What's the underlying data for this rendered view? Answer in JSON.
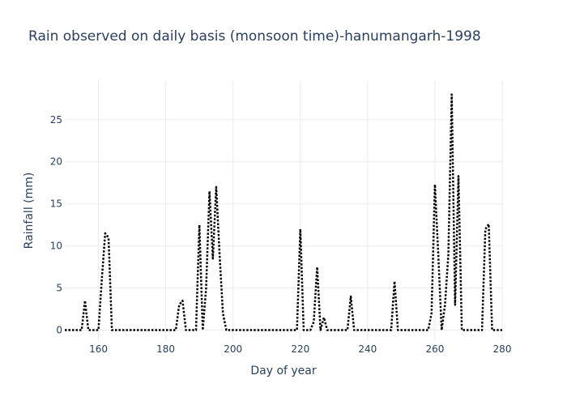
{
  "chart_data": {
    "type": "line",
    "title": "Rain observed on daily basis (monsoon time)-hanumangarh-1998",
    "xlabel": "Day of year",
    "ylabel": "Rainfall (mm)",
    "xlim": [
      150,
      280
    ],
    "ylim": [
      -1.2,
      29.6
    ],
    "x_ticks": [
      160,
      180,
      200,
      220,
      240,
      260,
      280
    ],
    "y_ticks": [
      0,
      5,
      10,
      15,
      20,
      25
    ],
    "grid": true,
    "legend": "none",
    "series": [
      {
        "color": "#000000",
        "dash": "dot",
        "x": [
          150,
          151,
          152,
          153,
          154,
          155,
          156,
          157,
          158,
          159,
          160,
          161,
          162,
          163,
          164,
          165,
          166,
          167,
          168,
          169,
          170,
          171,
          172,
          173,
          174,
          175,
          176,
          177,
          178,
          179,
          180,
          181,
          182,
          183,
          184,
          185,
          186,
          187,
          188,
          189,
          190,
          191,
          192,
          193,
          194,
          195,
          196,
          197,
          198,
          199,
          200,
          201,
          202,
          203,
          204,
          205,
          206,
          207,
          208,
          209,
          210,
          211,
          212,
          213,
          214,
          215,
          216,
          217,
          218,
          219,
          220,
          221,
          222,
          223,
          224,
          225,
          226,
          227,
          228,
          229,
          230,
          231,
          232,
          233,
          234,
          235,
          236,
          237,
          238,
          239,
          240,
          241,
          242,
          243,
          244,
          245,
          246,
          247,
          248,
          249,
          250,
          251,
          252,
          253,
          254,
          255,
          256,
          257,
          258,
          259,
          260,
          261,
          262,
          263,
          264,
          265,
          266,
          267,
          268,
          269,
          270,
          271,
          272,
          273,
          274,
          275,
          276,
          277,
          278,
          279,
          280
        ],
        "y": [
          0,
          0,
          0,
          0,
          0,
          0,
          3.5,
          0,
          0,
          0,
          0,
          6,
          11.5,
          11,
          0,
          0,
          0,
          0,
          0,
          0,
          0,
          0,
          0,
          0,
          0,
          0,
          0,
          0,
          0,
          0,
          0,
          0,
          0,
          0,
          3,
          3.5,
          0,
          0,
          0,
          0,
          12.5,
          0,
          5,
          16.5,
          8.5,
          17,
          9,
          2,
          0,
          0,
          0,
          0,
          0,
          0,
          0,
          0,
          0,
          0,
          0,
          0,
          0,
          0,
          0,
          0,
          0,
          0,
          0,
          0,
          0,
          0,
          12,
          0,
          0,
          0,
          1,
          7.5,
          0,
          1.5,
          0,
          0,
          0,
          0,
          0,
          0,
          0,
          4,
          0,
          0,
          0,
          0,
          0,
          0,
          0,
          0,
          0,
          0,
          0,
          0,
          5.8,
          0,
          0,
          0,
          0,
          0,
          0,
          0,
          0,
          0,
          0,
          2,
          17.3,
          9,
          0,
          3,
          9,
          28,
          3,
          18.3,
          0,
          0,
          0,
          0,
          0,
          0,
          0,
          12,
          12.6,
          0,
          0,
          0,
          0
        ]
      }
    ]
  }
}
